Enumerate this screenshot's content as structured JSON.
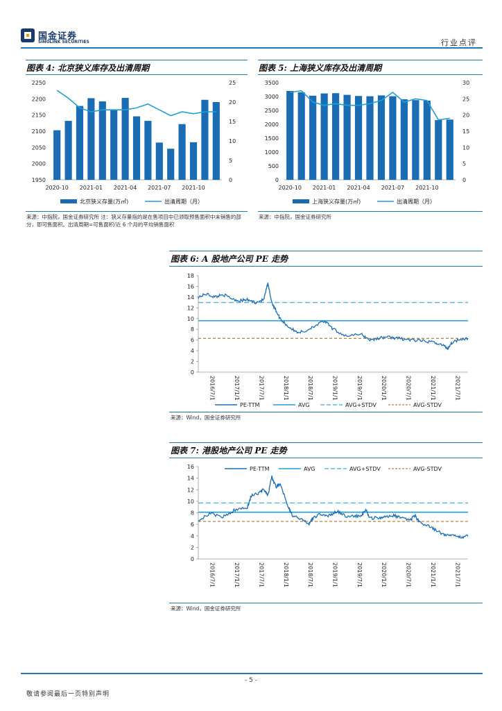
{
  "header": {
    "brand_cn": "国金证券",
    "brand_en": "SINOLINK SECURITIES",
    "category": "行业点评"
  },
  "fig4": {
    "title": "图表 4:  北京狭义库存及出清周期",
    "source": "来源：中指院，国金证券研究所  注：狭义存量指的是在售项目中已领取预售面积中未销售的部分，即可售面积。出清周期=可售面积/近 6 个月的平均销售面积",
    "legend_bar": "北京狭义存量(万㎡)",
    "legend_line": "出清周期（月）",
    "chart_data": {
      "type": "bar",
      "title": "图表 4:  北京狭义库存及出清周期",
      "categories": [
        "2020-10",
        "2020-11",
        "2020-12",
        "2021-01",
        "2021-02",
        "2021-03",
        "2021-04",
        "2021-05",
        "2021-06",
        "2021-07",
        "2021-08",
        "2021-09",
        "2021-10",
        "2021-11",
        "2021-12"
      ],
      "tick_labels": [
        "2020-10",
        "2021-01",
        "2021-04",
        "2021-07",
        "2021-10"
      ],
      "series": [
        {
          "name": "北京狭义存量(万㎡)",
          "axis": "left",
          "values": [
            2103,
            2132,
            2178,
            2202,
            2192,
            2167,
            2203,
            2146,
            2132,
            2065,
            2046,
            2122,
            2066,
            2197,
            2190
          ]
        },
        {
          "name": "出清周期（月）",
          "axis": "right",
          "values": [
            23.0,
            21.0,
            18.5,
            17.5,
            18.0,
            18.0,
            18.0,
            18.5,
            19.5,
            18.0,
            16.5,
            17.5,
            17.0,
            17.5,
            17.5
          ]
        }
      ],
      "ylim_left": [
        1950,
        2250
      ],
      "yticks_left": [
        1950,
        2000,
        2050,
        2100,
        2150,
        2200,
        2250
      ],
      "ylim_right": [
        0,
        25
      ],
      "yticks_right": [
        0,
        5,
        10,
        15,
        20,
        25
      ]
    }
  },
  "fig5": {
    "title": "图表 5:  上海狭义库存及出清周期",
    "source": "来源：中指院，国金证券研究所",
    "legend_bar": "上海狭义存量(万㎡)",
    "legend_line": "出清周期（月）",
    "chart_data": {
      "type": "bar",
      "title": "图表 5:  上海狭义库存及出清周期",
      "categories": [
        "2020-10",
        "2020-11",
        "2020-12",
        "2021-01",
        "2021-02",
        "2021-03",
        "2021-04",
        "2021-05",
        "2021-06",
        "2021-07",
        "2021-08",
        "2021-09",
        "2021-10",
        "2021-11",
        "2021-12"
      ],
      "tick_labels": [
        "2020-10",
        "2021-01",
        "2021-04",
        "2021-07",
        "2021-10"
      ],
      "series": [
        {
          "name": "上海狭义存量(万㎡)",
          "axis": "left",
          "values": [
            3200,
            3150,
            3030,
            3110,
            3120,
            3060,
            3020,
            3010,
            3040,
            3010,
            2900,
            2870,
            2850,
            2150,
            2170
          ]
        },
        {
          "name": "出清周期（月）",
          "axis": "right",
          "values": [
            27.0,
            27.5,
            24.0,
            23.0,
            23.5,
            23.0,
            23.0,
            23.5,
            24.5,
            27.0,
            24.0,
            25.0,
            24.5,
            18.5,
            19.0
          ]
        }
      ],
      "ylim_left": [
        0,
        3500
      ],
      "yticks_left": [
        0,
        500,
        1000,
        1500,
        2000,
        2500,
        3000,
        3500
      ],
      "ylim_right": [
        0,
        30
      ],
      "yticks_right": [
        0,
        5,
        10,
        15,
        20,
        25,
        30
      ]
    }
  },
  "fig6": {
    "title": "图表 6:  A 股地产公司 PE 走势",
    "source": "来源：Wind，国金证券研究所",
    "legend": [
      "PE-TTM",
      "AVG",
      "AVG+STDV",
      "AVG-STDV"
    ],
    "chart_data": {
      "type": "line",
      "title": "图表 6:  A 股地产公司 PE 走势",
      "x_labels": [
        "2016/7/1",
        "2017/1/1",
        "2017/7/1",
        "2018/1/1",
        "2018/7/1",
        "2019/1/1",
        "2019/7/1",
        "2020/1/1",
        "2020/7/1",
        "2021/1/1",
        "2021/7/1"
      ],
      "x_range": [
        0,
        66
      ],
      "pe_anchors": [
        [
          0,
          14.0
        ],
        [
          2,
          14.6
        ],
        [
          4,
          14.0
        ],
        [
          6,
          14.5
        ],
        [
          8,
          13.8
        ],
        [
          10,
          13.3
        ],
        [
          12,
          13.5
        ],
        [
          14,
          13.0
        ],
        [
          16,
          13.5
        ],
        [
          17,
          16.5
        ],
        [
          18,
          13.0
        ],
        [
          19,
          11.5
        ],
        [
          20,
          10.0
        ],
        [
          22,
          8.5
        ],
        [
          24,
          7.5
        ],
        [
          26,
          7.5
        ],
        [
          28,
          8.5
        ],
        [
          31,
          9.5
        ],
        [
          33,
          8.0
        ],
        [
          36,
          6.8
        ],
        [
          40,
          7.0
        ],
        [
          42,
          6.0
        ],
        [
          44,
          6.3
        ],
        [
          46,
          6.6
        ],
        [
          48,
          6.4
        ],
        [
          50,
          6.2
        ],
        [
          52,
          6.0
        ],
        [
          55,
          5.8
        ],
        [
          58,
          5.5
        ],
        [
          60,
          5.0
        ],
        [
          61,
          4.4
        ],
        [
          62,
          5.5
        ],
        [
          64,
          6.2
        ],
        [
          66,
          6.3
        ]
      ],
      "avg": 9.6,
      "avg_plus_stdv": 13.0,
      "avg_minus_stdv": 6.3,
      "ylim": [
        0,
        18
      ],
      "yticks": [
        0,
        2,
        4,
        6,
        8,
        10,
        12,
        14,
        16,
        18
      ]
    }
  },
  "fig7": {
    "title": "图表 7:  港股地产公司 PE 走势",
    "source": "来源：Wind，国金证券研究所",
    "legend": [
      "PE-TTM",
      "AVG",
      "AVG+STDV",
      "AVG-STDV"
    ],
    "chart_data": {
      "type": "line",
      "title": "图表 7:  港股地产公司 PE 走势",
      "x_labels": [
        "2016/7/1",
        "2017/1/1",
        "2017/7/1",
        "2018/1/1",
        "2018/7/1",
        "2019/1/1",
        "2019/7/1",
        "2020/1/1",
        "2020/7/1",
        "2021/1/1",
        "2021/7/1"
      ],
      "x_range": [
        0,
        66
      ],
      "pe_anchors": [
        [
          0,
          6.8
        ],
        [
          3,
          7.8
        ],
        [
          6,
          7.3
        ],
        [
          9,
          8.5
        ],
        [
          12,
          9.0
        ],
        [
          13,
          11.0
        ],
        [
          15,
          11.5
        ],
        [
          16,
          12.0
        ],
        [
          17,
          11.0
        ],
        [
          18,
          14.2
        ],
        [
          19,
          12.5
        ],
        [
          20,
          13.0
        ],
        [
          22,
          9.2
        ],
        [
          23,
          7.5
        ],
        [
          25,
          7.0
        ],
        [
          27,
          6.0
        ],
        [
          28,
          7.0
        ],
        [
          30,
          7.8
        ],
        [
          32,
          7.5
        ],
        [
          34,
          8.2
        ],
        [
          36,
          7.5
        ],
        [
          38,
          7.3
        ],
        [
          40,
          7.6
        ],
        [
          41,
          8.5
        ],
        [
          42,
          7.0
        ],
        [
          44,
          7.2
        ],
        [
          46,
          7.3
        ],
        [
          48,
          7.5
        ],
        [
          50,
          7.0
        ],
        [
          52,
          6.8
        ],
        [
          53,
          7.5
        ],
        [
          54,
          6.5
        ],
        [
          56,
          5.8
        ],
        [
          58,
          5.0
        ],
        [
          60,
          4.3
        ],
        [
          62,
          4.0
        ],
        [
          64,
          3.8
        ],
        [
          66,
          3.9
        ]
      ],
      "avg": 8.1,
      "avg_plus_stdv": 9.7,
      "avg_minus_stdv": 6.5,
      "ylim": [
        0,
        16
      ],
      "yticks": [
        0,
        2,
        4,
        6,
        8,
        10,
        12,
        14,
        16
      ]
    }
  },
  "footer": {
    "page_num": "- 5 -",
    "disclaimer": "敬请参阅最后一页特别声明"
  }
}
